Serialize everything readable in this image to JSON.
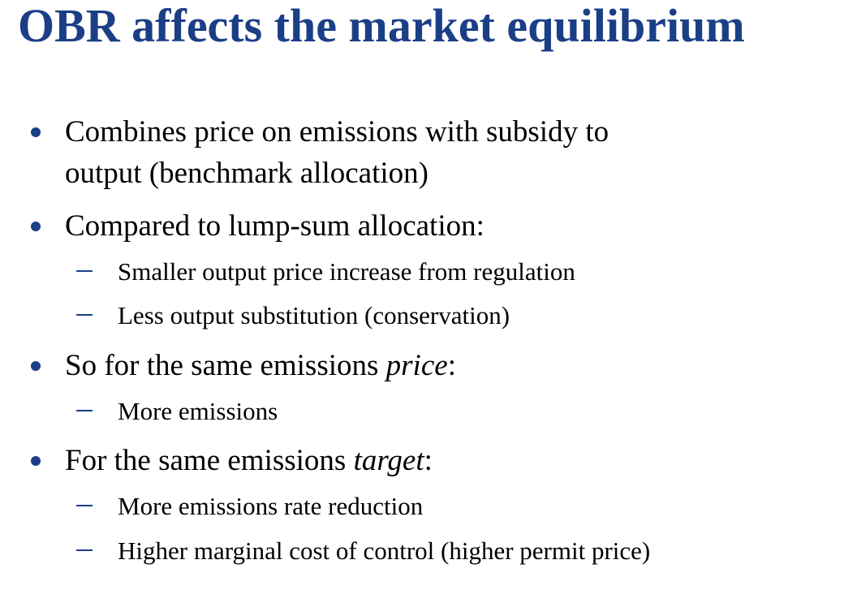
{
  "slide": {
    "title": "OBR affects the market equilibrium",
    "bullets": [
      {
        "line1": "Combines price on emissions with subsidy to",
        "line2": "output (benchmark allocation)"
      },
      {
        "text": "Compared to lump-sum allocation:",
        "subs": [
          "Smaller output price increase from regulation",
          "Less output substitution (conservation)"
        ]
      },
      {
        "prefix": "So for the same emissions ",
        "emph": "price",
        "suffix": ":",
        "subs": [
          "More emissions"
        ]
      },
      {
        "prefix": "For the same emissions ",
        "emph": "target",
        "suffix": ":",
        "subs": [
          "More emissions rate reduction",
          "Higher marginal cost of control (higher permit price)"
        ]
      }
    ]
  },
  "colors": {
    "title": "#1b3f86",
    "bullet_marker": "#1b3f86",
    "text": "#000000",
    "background": "#ffffff"
  }
}
